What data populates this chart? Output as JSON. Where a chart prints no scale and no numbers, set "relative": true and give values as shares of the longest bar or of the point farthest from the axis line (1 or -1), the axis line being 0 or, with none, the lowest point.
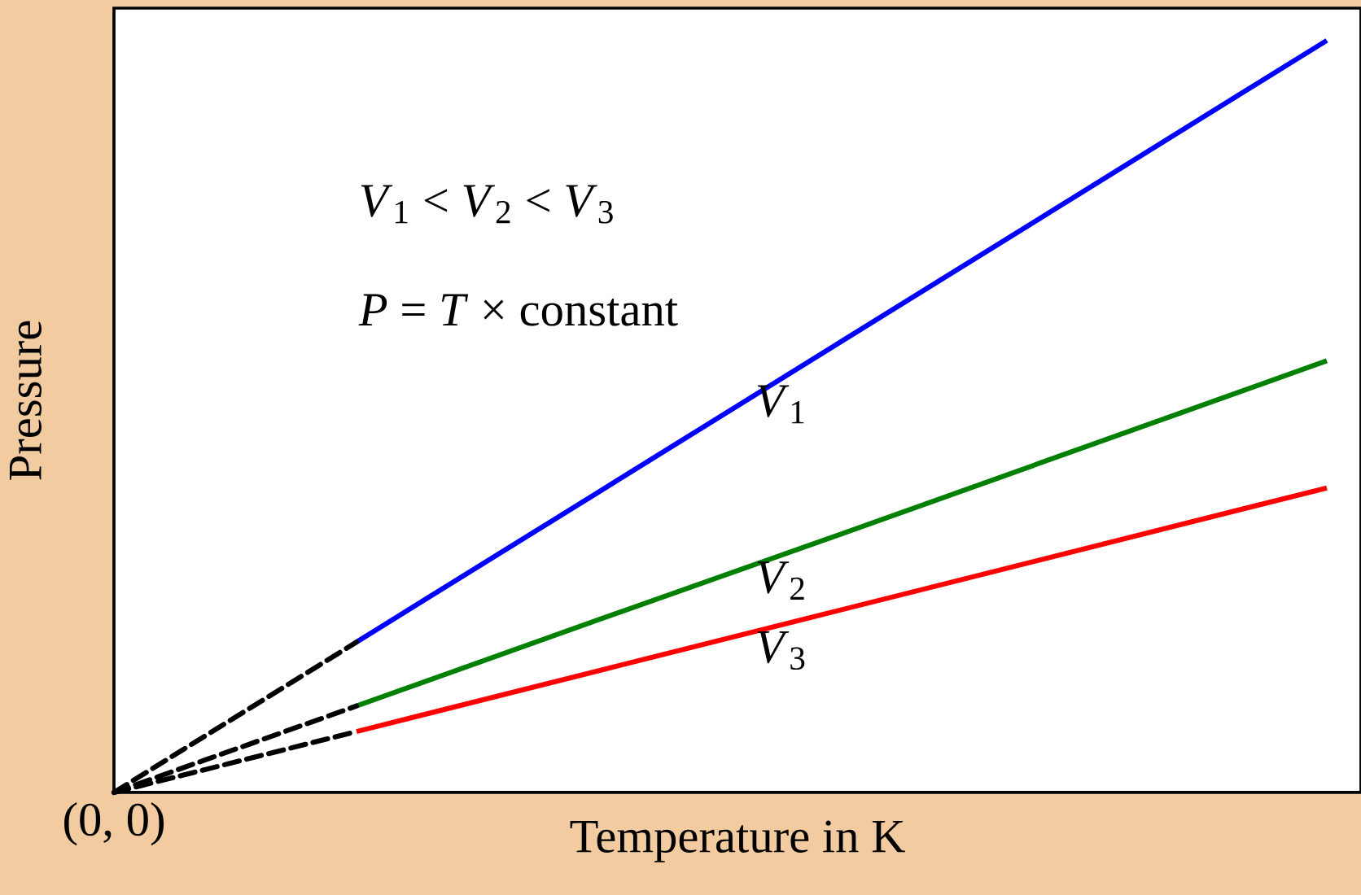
{
  "chart_data": {
    "type": "line",
    "relative": true,
    "xlabel": "Temperature in K",
    "ylabel": "Pressure",
    "categories": [
      null,
      null,
      null,
      null,
      null,
      null
    ],
    "series": [
      {
        "name": "*V*$_{1}$",
        "color": "#0000ff",
        "values": [
          null,
          0.2,
          0.4,
          0.6,
          0.8,
          1
        ]
      },
      {
        "name": "*V*$_{2}$",
        "color": "#008000",
        "values": [
          null,
          0.115,
          0.23,
          0.344,
          0.459,
          0.574
        ]
      },
      {
        "name": "*V*$_{3}$",
        "color": "#ff0000",
        "values": [
          null,
          0.081,
          0.162,
          0.243,
          0.324,
          0.405
        ]
      },
      {
        "color": "#000000",
        "line_style": "dashed",
        "values": [
          0,
          0.2,
          null,
          null,
          null,
          null
        ]
      },
      {
        "color": "#000000",
        "line_style": "dashed",
        "values": [
          0,
          0.115,
          null,
          null,
          null,
          null
        ]
      },
      {
        "color": "#000000",
        "line_style": "dashed",
        "values": [
          0,
          0.081,
          null,
          null,
          null,
          null
        ]
      }
    ],
    "annotations": [
      "*V*$_{1}$ < *V*$_{2}$ < *V*$_{3}$",
      "*P* = *T* × constant",
      "(0, 0)"
    ],
    "legend": false
  }
}
